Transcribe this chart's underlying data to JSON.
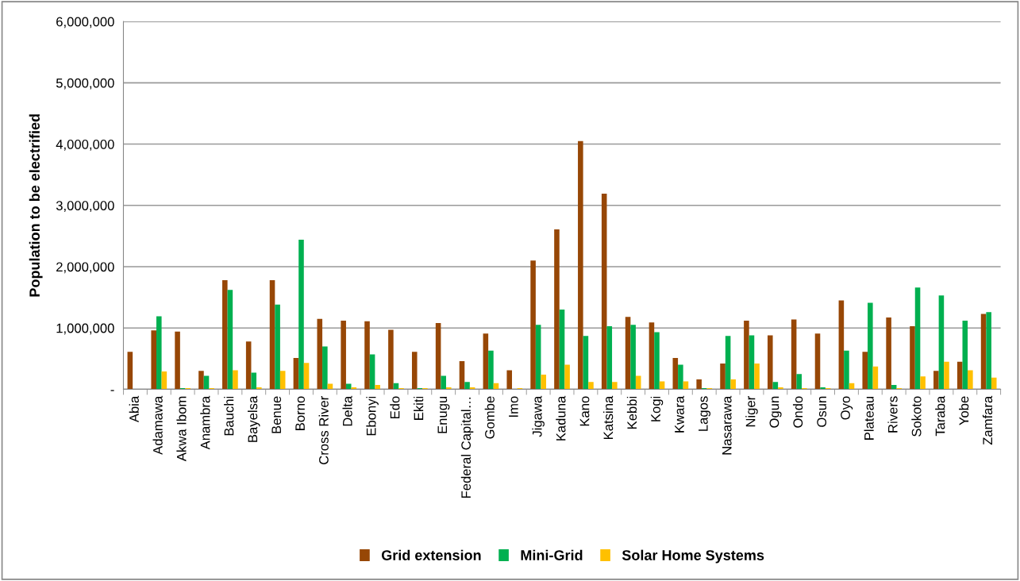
{
  "chart_data": {
    "type": "bar",
    "ylabel": "Population to be electrified",
    "categories": [
      "Abia",
      "Adamawa",
      "Akwa Ibom",
      "Anambra",
      "Bauchi",
      "Bayelsa",
      "Benue",
      "Borno",
      "Cross River",
      "Delta",
      "Ebonyi",
      "Edo",
      "Ekiti",
      "Enugu",
      "Federal Capital…",
      "Gombe",
      "Imo",
      "Jigawa",
      "Kaduna",
      "Kano",
      "Katsina",
      "Kebbi",
      "Kogi",
      "Kwara",
      "Lagos",
      "Nasarawa",
      "Niger",
      "Ogun",
      "Ondo",
      "Osun",
      "Oyo",
      "Plateau",
      "Rivers",
      "Sokoto",
      "Taraba",
      "Yobe",
      "Zamfara"
    ],
    "series": [
      {
        "name": "Grid extension",
        "color": "#974706",
        "values": [
          610000,
          960000,
          940000,
          300000,
          1780000,
          780000,
          1780000,
          510000,
          1150000,
          1120000,
          1110000,
          970000,
          610000,
          1080000,
          460000,
          910000,
          310000,
          2100000,
          2610000,
          4050000,
          3190000,
          1180000,
          1090000,
          510000,
          160000,
          420000,
          1120000,
          880000,
          1140000,
          910000,
          1450000,
          610000,
          1170000,
          1030000,
          300000,
          450000,
          1230000
        ]
      },
      {
        "name": "Mini-Grid",
        "color": "#00b050",
        "values": [
          0,
          1190000,
          20000,
          220000,
          1620000,
          270000,
          1380000,
          2440000,
          700000,
          90000,
          570000,
          100000,
          20000,
          220000,
          120000,
          630000,
          0,
          1050000,
          1300000,
          870000,
          1030000,
          1050000,
          930000,
          400000,
          20000,
          870000,
          880000,
          120000,
          250000,
          30000,
          630000,
          1410000,
          70000,
          1660000,
          1530000,
          1120000,
          1260000
        ]
      },
      {
        "name": "Solar Home Systems",
        "color": "#ffc000",
        "values": [
          0,
          290000,
          20000,
          20000,
          310000,
          30000,
          300000,
          430000,
          90000,
          30000,
          70000,
          20000,
          20000,
          30000,
          30000,
          100000,
          20000,
          240000,
          400000,
          120000,
          120000,
          220000,
          130000,
          130000,
          20000,
          160000,
          420000,
          30000,
          20000,
          20000,
          100000,
          370000,
          20000,
          210000,
          450000,
          310000,
          190000
        ]
      }
    ],
    "ylim": [
      0,
      6000000
    ],
    "yticks": [
      {
        "value": 0,
        "label": "-"
      },
      {
        "value": 1000000,
        "label": "1,000,000"
      },
      {
        "value": 2000000,
        "label": "2,000,000"
      },
      {
        "value": 3000000,
        "label": "3,000,000"
      },
      {
        "value": 4000000,
        "label": "4,000,000"
      },
      {
        "value": 5000000,
        "label": "5,000,000"
      },
      {
        "value": 6000000,
        "label": "6,000,000"
      }
    ],
    "grid": "y",
    "legend": "bottom"
  }
}
